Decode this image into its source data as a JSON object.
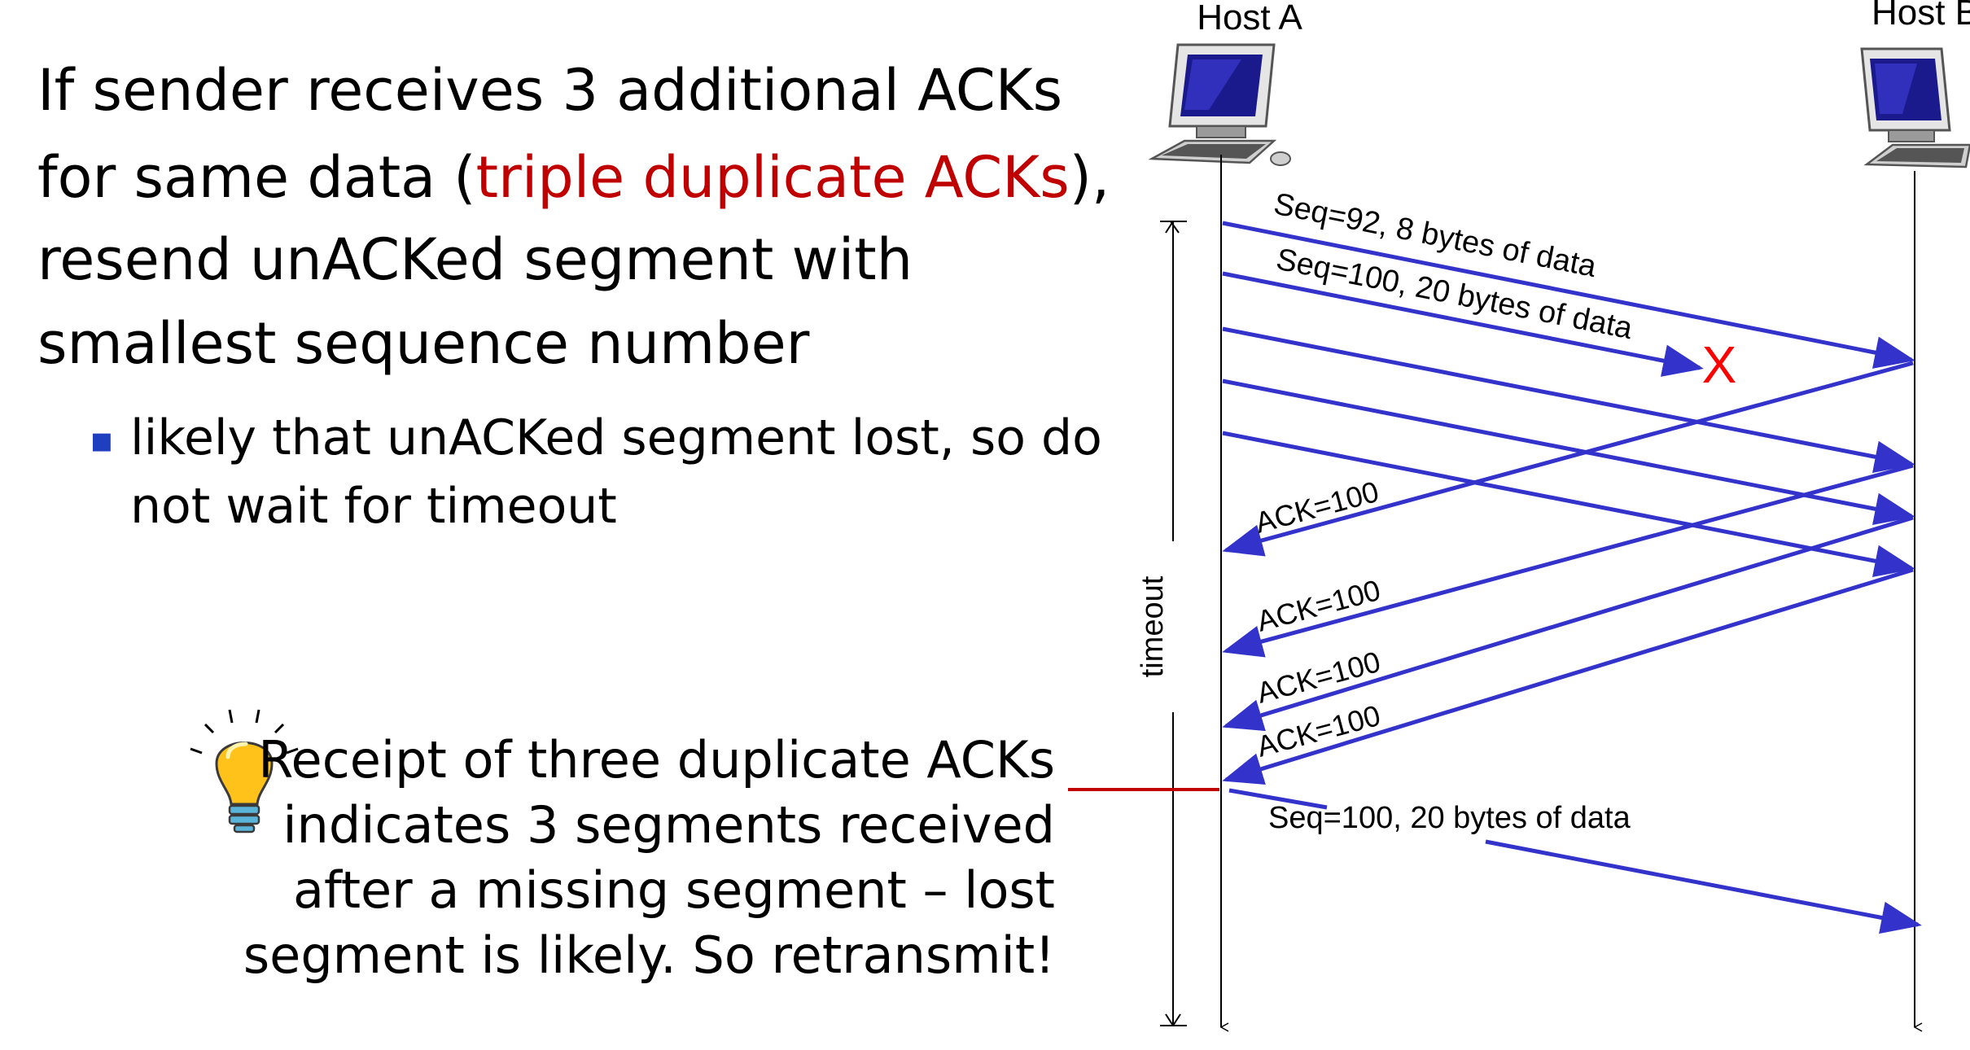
{
  "main_text": {
    "line1": "If sender receives 3 additional ACKs",
    "line2_before": "for same data (",
    "line2_highlight": "triple duplicate ACKs",
    "line2_after": "),",
    "line3": "resend unACKed segment with",
    "line4": "smallest sequence number",
    "bullet_marker": "▪",
    "bullet_line1": "likely that unACKed segment lost, so do",
    "bullet_line2": "not wait for timeout"
  },
  "hint": {
    "icon": "lightbulb-icon",
    "line1": "Receipt of three duplicate ACKs",
    "line2": "indicates 3 segments received",
    "line3": "after a missing segment – lost",
    "line4": "segment is likely. So retransmit!"
  },
  "diagram": {
    "host_a": "Host A",
    "host_b": "Host B",
    "timeout_label": "timeout",
    "loss_marker": "X",
    "messages": {
      "seq92": "Seq=92, 8 bytes of data",
      "seq100": "Seq=100, 20 bytes of data",
      "ack1": "ACK=100",
      "ack2": "ACK=100",
      "ack3": "ACK=100",
      "ack4": "ACK=100",
      "retransmit": "Seq=100, 20 bytes of data"
    }
  },
  "colors": {
    "highlight": "#c00000",
    "arrow": "#3333cc",
    "loss": "#ff0000",
    "detect_line": "#c00000",
    "bullet": "#1f3fbf"
  }
}
